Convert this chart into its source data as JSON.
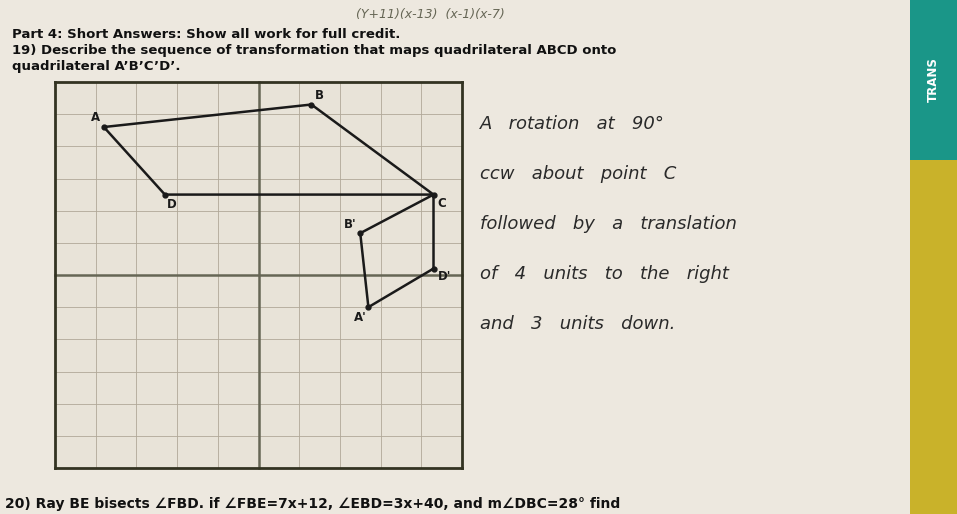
{
  "title_line1": "Part 4: Short Answers: Show all work for full credit.",
  "title_line2": "19) Describe the sequence of transformation that maps quadrilateral ABCD onto",
  "title_line3": "quadrilateral A’B’C’D’.",
  "bg_color": "#ddd8cc",
  "paper_color": "#ede8df",
  "grid_bg": "#e8e3d8",
  "line_color": "#1a1a1a",
  "text_color": "#111111",
  "grid_line_color": "#b0a898",
  "thick_line_color": "#666655",
  "top_expr": "(Y+11)(x-13)  (x-1)(x-7)",
  "handwritten_lines": [
    "A   rotation   at   90°",
    "ccw   about   point   C",
    "followed   by   a   translation",
    "of   4   units   to   the   right",
    "and   3   units   down."
  ],
  "bottom_text": "20) Ray BE bisects ∠FBD. if ∠FBE=7x+12, ∠EBD=3x+40, and m∠DBC=28° find",
  "tab_yellow": "#c9b22a",
  "tab_teal": "#1a9688",
  "tab_text_color": "#ffffff"
}
